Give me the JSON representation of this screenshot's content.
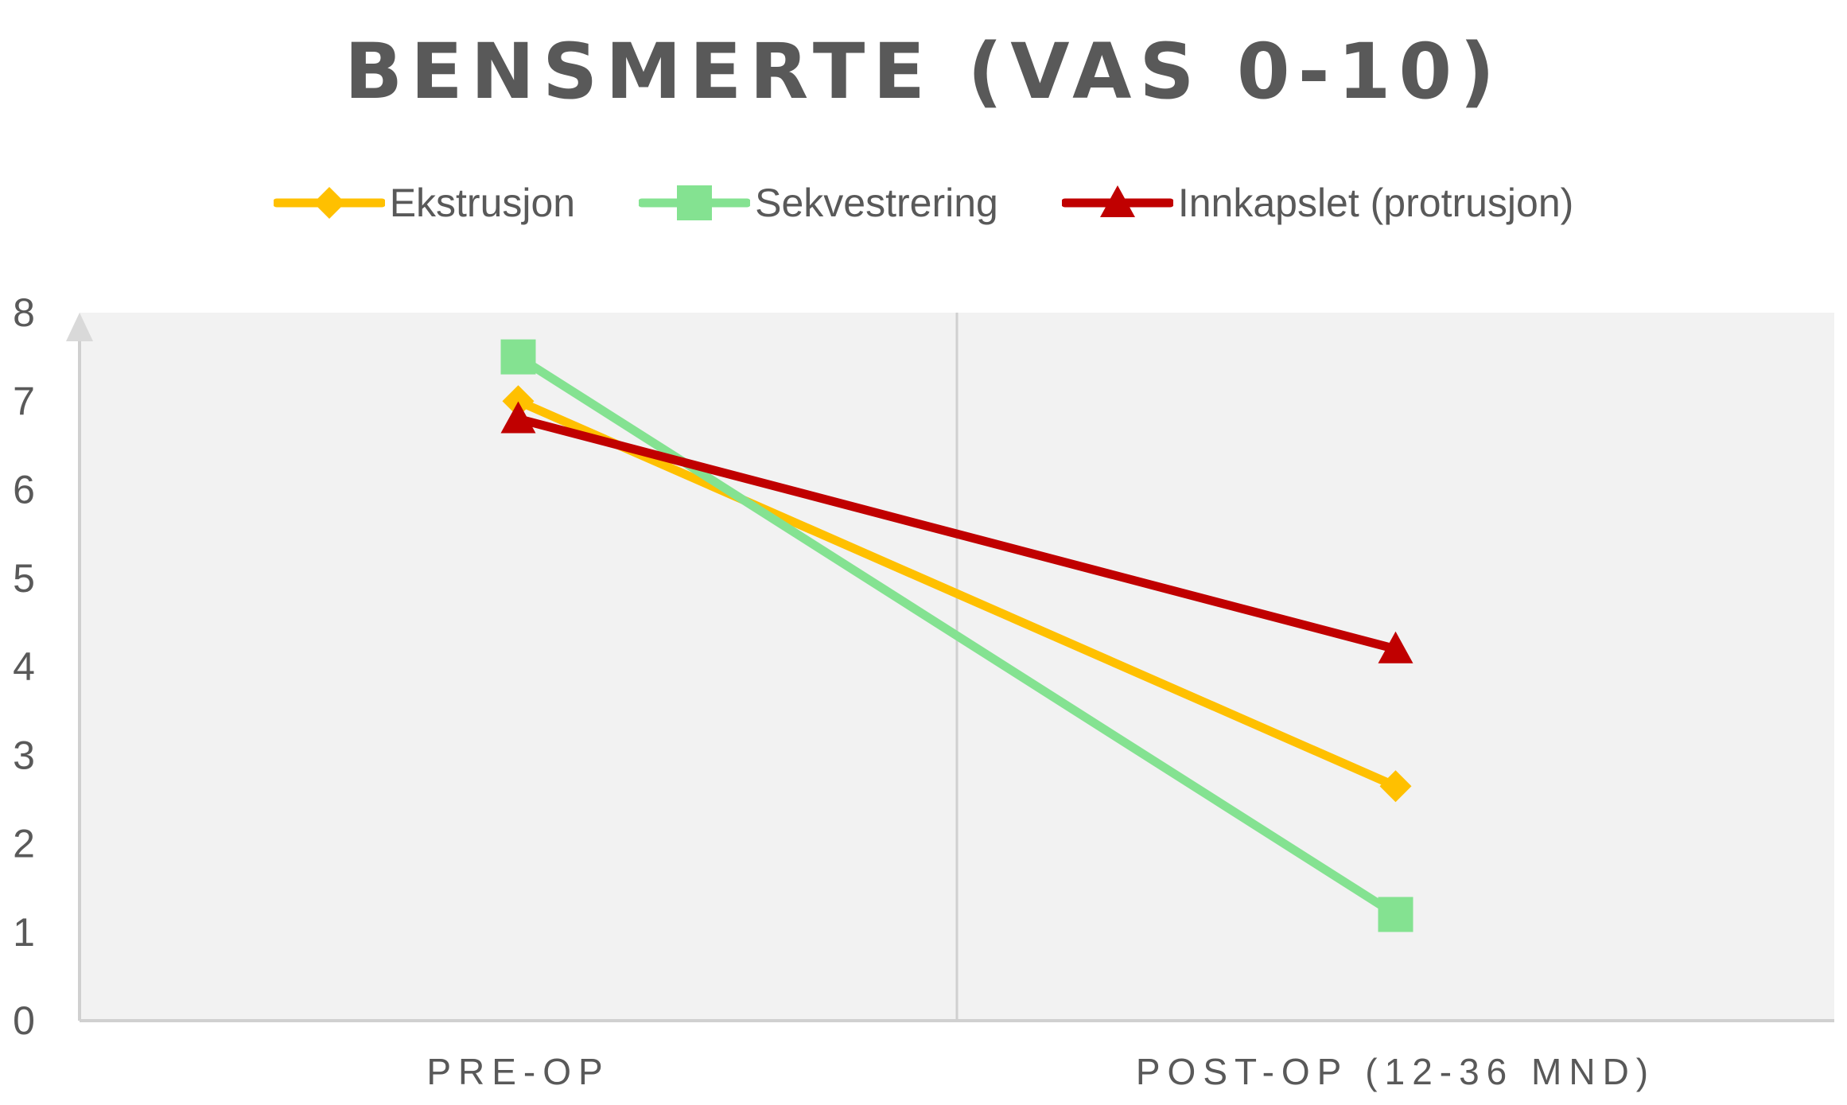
{
  "chart_data": {
    "type": "line",
    "title": "BENSMERTE (VAS 0-10)",
    "categories": [
      "PRE-OP",
      "POST-OP (12-36 MND)"
    ],
    "ylim": [
      0,
      8
    ],
    "yticks": [
      "0",
      "1",
      "2",
      "3",
      "4",
      "5",
      "6",
      "7",
      "8"
    ],
    "grid": false,
    "legend_position": "top",
    "series": [
      {
        "name": "Ekstrusjon",
        "values": [
          7.0,
          2.65
        ],
        "color": "#FFC000",
        "marker": "diamond"
      },
      {
        "name": "Sekvestrering",
        "values": [
          7.5,
          1.2
        ],
        "color": "#84E291",
        "marker": "square"
      },
      {
        "name": "Innkapslet (protrusjon)",
        "values": [
          6.8,
          4.2
        ],
        "color": "#C00000",
        "marker": "triangle"
      }
    ]
  }
}
